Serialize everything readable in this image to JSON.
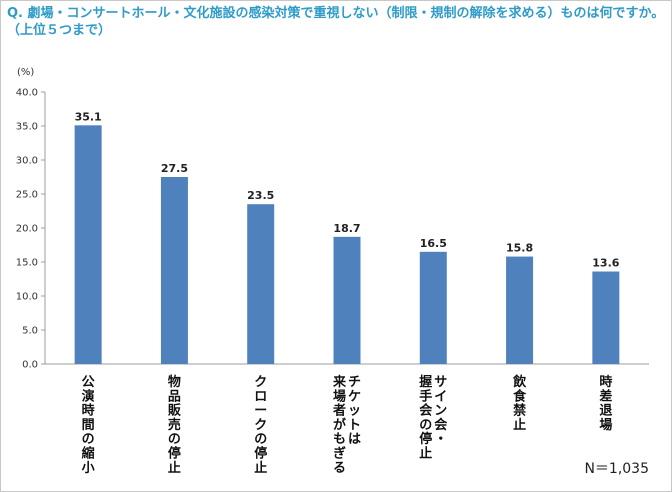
{
  "chart_data": {
    "type": "bar",
    "title": "Q. 劇場・コンサートホール・文化施設の感染対策で重視しない（制限・規制の解除を求める）ものは何ですか。\n（上位５つまで）",
    "ylabel": "(%)",
    "xlabel": "",
    "ylim": [
      0,
      40
    ],
    "yticks": [
      "0.0",
      "5.0",
      "10.0",
      "15.0",
      "20.0",
      "25.0",
      "30.0",
      "35.0",
      "40.0"
    ],
    "grid": false,
    "legend": "none",
    "categories": [
      [
        "公演時間の縮小"
      ],
      [
        "物品販売の停止"
      ],
      [
        "クロークの停止"
      ],
      [
        "チケットは",
        "来場者がもぎる"
      ],
      [
        "サイン会・",
        "握手会の停止"
      ],
      [
        "飲食禁止"
      ],
      [
        "時差退場"
      ]
    ],
    "values": [
      35.1,
      27.5,
      23.5,
      18.7,
      16.5,
      15.8,
      13.6
    ],
    "value_labels": [
      "35.1",
      "27.5",
      "23.5",
      "18.7",
      "16.5",
      "15.8",
      "13.6"
    ],
    "bar_color": "#4f81bd",
    "title_color": "#2e9bc9",
    "note": "N＝1,035"
  }
}
